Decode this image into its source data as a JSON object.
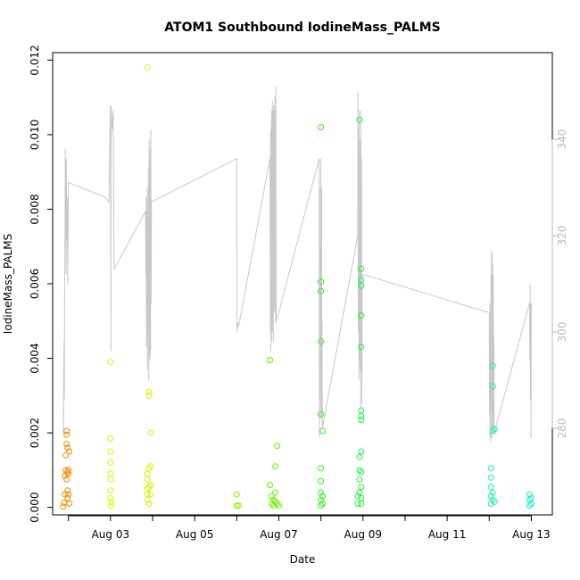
{
  "chart_data": {
    "type": "scatter",
    "title": "ATOM1 Southbound IodineMass_PALMS",
    "xlabel": "Date",
    "ylabel": "IodineMass_PALMS",
    "x_axis": {
      "unit": "date (day of August 2016)",
      "range": [
        "Aug 01 15:00",
        "Aug 13 12:00"
      ],
      "tick_labels": [
        "Aug 03",
        "Aug 05",
        "Aug 07",
        "Aug 09",
        "Aug 11",
        "Aug 13"
      ]
    },
    "ylim": [
      -0.0002,
      0.0122
    ],
    "y_tick_labels": [
      "0.000",
      "0.002",
      "0.004",
      "0.006",
      "0.008",
      "0.010",
      "0.012"
    ],
    "y2_axis": {
      "position": "right",
      "range": [
        262,
        358
      ],
      "tick_labels": [
        "280",
        "300",
        "320",
        "340"
      ],
      "color": "#b8b8b8"
    },
    "grid": false,
    "colors": {
      "secondary_line": "#c8c8c8",
      "right_axis": "#b8b8b8"
    },
    "points": [
      {
        "x": "Aug 01 21:00",
        "y": 2e-05,
        "c": "#f08a00"
      },
      {
        "x": "Aug 01 21:30",
        "y": 0.00012,
        "c": "#f08a00"
      },
      {
        "x": "Aug 01 22:00",
        "y": 0.00035,
        "c": "#f08a00"
      },
      {
        "x": "Aug 01 22:00",
        "y": 0.00085,
        "c": "#f08a00"
      },
      {
        "x": "Aug 01 22:30",
        "y": 0.001,
        "c": "#f08a00"
      },
      {
        "x": "Aug 01 22:30",
        "y": 0.0014,
        "c": "#f08a00"
      },
      {
        "x": "Aug 01 23:00",
        "y": 0.00195,
        "c": "#f08a00"
      },
      {
        "x": "Aug 01 23:00",
        "y": 0.00205,
        "c": "#f08a00"
      },
      {
        "x": "Aug 01 23:00",
        "y": 0.0017,
        "c": "#f08a00"
      },
      {
        "x": "Aug 01 23:00",
        "y": 0.00075,
        "c": "#f08a00"
      },
      {
        "x": "Aug 01 23:30",
        "y": 0.0016,
        "c": "#f08a00"
      },
      {
        "x": "Aug 01 23:30",
        "y": 0.00095,
        "c": "#f08a00"
      },
      {
        "x": "Aug 01 23:30",
        "y": 0.00045,
        "c": "#f08a00"
      },
      {
        "x": "Aug 01 23:30",
        "y": 0.00025,
        "c": "#f08a00"
      },
      {
        "x": "Aug 02 00:00",
        "y": 0.001,
        "c": "#f08a00"
      },
      {
        "x": "Aug 02 00:00",
        "y": 0.0009,
        "c": "#f08a00"
      },
      {
        "x": "Aug 02 00:00",
        "y": 0.00035,
        "c": "#f08a00"
      },
      {
        "x": "Aug 02 00:30",
        "y": 0.0001,
        "c": "#f08a00"
      },
      {
        "x": "Aug 02 00:30",
        "y": 0.0015,
        "c": "#f08a00"
      },
      {
        "x": "Aug 03 00:00",
        "y": 0.0039,
        "c": "#e6f000"
      },
      {
        "x": "Aug 03 00:00",
        "y": 0.00185,
        "c": "#e6f000"
      },
      {
        "x": "Aug 03 00:00",
        "y": 0.0015,
        "c": "#e6f000"
      },
      {
        "x": "Aug 03 00:00",
        "y": 0.0012,
        "c": "#e6f000"
      },
      {
        "x": "Aug 03 00:00",
        "y": 0.0009,
        "c": "#e6f000"
      },
      {
        "x": "Aug 03 00:00",
        "y": 0.00075,
        "c": "#e6f000"
      },
      {
        "x": "Aug 03 00:00",
        "y": 0.00045,
        "c": "#e6f000"
      },
      {
        "x": "Aug 03 00:00",
        "y": 0.00025,
        "c": "#e6f000"
      },
      {
        "x": "Aug 03 00:30",
        "y": 0.00015,
        "c": "#e6f000"
      },
      {
        "x": "Aug 03 00:30",
        "y": 5e-05,
        "c": "#e6f000"
      },
      {
        "x": "Aug 03 21:00",
        "y": 0.0118,
        "c": "#d8f000"
      },
      {
        "x": "Aug 03 21:00",
        "y": 0.0009,
        "c": "#d8f000"
      },
      {
        "x": "Aug 03 21:00",
        "y": 0.00075,
        "c": "#d8f000"
      },
      {
        "x": "Aug 03 21:00",
        "y": 0.0005,
        "c": "#d8f000"
      },
      {
        "x": "Aug 03 21:00",
        "y": 0.00035,
        "c": "#d8f000"
      },
      {
        "x": "Aug 03 21:00",
        "y": 0.0002,
        "c": "#d8f000"
      },
      {
        "x": "Aug 03 22:00",
        "y": 0.0031,
        "c": "#d8f000"
      },
      {
        "x": "Aug 03 22:00",
        "y": 0.003,
        "c": "#d8f000"
      },
      {
        "x": "Aug 03 22:00",
        "y": 0.00105,
        "c": "#d8f000"
      },
      {
        "x": "Aug 03 22:00",
        "y": 0.00055,
        "c": "#d8f000"
      },
      {
        "x": "Aug 03 22:00",
        "y": 0.0001,
        "c": "#d8f000"
      },
      {
        "x": "Aug 03 23:00",
        "y": 0.002,
        "c": "#d8f000"
      },
      {
        "x": "Aug 03 23:00",
        "y": 0.0011,
        "c": "#d8f000"
      },
      {
        "x": "Aug 03 23:00",
        "y": 0.0006,
        "c": "#d8f000"
      },
      {
        "x": "Aug 03 23:00",
        "y": 0.00035,
        "c": "#d8f000"
      },
      {
        "x": "Aug 06 00:00",
        "y": 0.00035,
        "c": "#8cf000"
      },
      {
        "x": "Aug 06 00:00",
        "y": 5e-05,
        "c": "#8cf000"
      },
      {
        "x": "Aug 06 01:00",
        "y": 5e-05,
        "c": "#8cf000"
      },
      {
        "x": "Aug 06 19:00",
        "y": 0.0006,
        "c": "#6af000"
      },
      {
        "x": "Aug 06 19:00",
        "y": 0.00395,
        "c": "#6af000"
      },
      {
        "x": "Aug 06 20:00",
        "y": 0.0003,
        "c": "#6af000"
      },
      {
        "x": "Aug 06 20:00",
        "y": 0.0001,
        "c": "#6af000"
      },
      {
        "x": "Aug 06 21:00",
        "y": 0.0002,
        "c": "#6af000"
      },
      {
        "x": "Aug 06 21:00",
        "y": 5e-05,
        "c": "#6af000"
      },
      {
        "x": "Aug 06 22:00",
        "y": 0.0011,
        "c": "#6af000"
      },
      {
        "x": "Aug 06 22:00",
        "y": 0.0004,
        "c": "#6af000"
      },
      {
        "x": "Aug 06 22:00",
        "y": 0.00015,
        "c": "#6af000"
      },
      {
        "x": "Aug 06 23:00",
        "y": 0.00165,
        "c": "#6af000"
      },
      {
        "x": "Aug 06 23:00",
        "y": 0.0001,
        "c": "#6af000"
      },
      {
        "x": "Aug 07 00:00",
        "y": 5e-05,
        "c": "#6af000"
      },
      {
        "x": "Aug 08 00:00",
        "y": 0.0102,
        "c": "#32f020"
      },
      {
        "x": "Aug 08 00:00",
        "y": 0.00605,
        "c": "#32f020"
      },
      {
        "x": "Aug 08 00:00",
        "y": 0.0058,
        "c": "#32f020"
      },
      {
        "x": "Aug 08 00:00",
        "y": 0.00445,
        "c": "#32f020"
      },
      {
        "x": "Aug 08 00:00",
        "y": 0.0025,
        "c": "#32f020"
      },
      {
        "x": "Aug 08 01:00",
        "y": 0.00205,
        "c": "#32f020"
      },
      {
        "x": "Aug 08 00:00",
        "y": 0.00105,
        "c": "#32f020"
      },
      {
        "x": "Aug 08 00:00",
        "y": 0.0007,
        "c": "#32f020"
      },
      {
        "x": "Aug 08 00:00",
        "y": 0.0004,
        "c": "#32f020"
      },
      {
        "x": "Aug 08 00:00",
        "y": 0.0002,
        "c": "#32f020"
      },
      {
        "x": "Aug 08 00:00",
        "y": 5e-05,
        "c": "#32f020"
      },
      {
        "x": "Aug 08 01:00",
        "y": 0.0003,
        "c": "#32f020"
      },
      {
        "x": "Aug 08 01:00",
        "y": 0.0001,
        "c": "#32f020"
      },
      {
        "x": "Aug 08 21:00",
        "y": 0.0003,
        "c": "#20f040"
      },
      {
        "x": "Aug 08 21:00",
        "y": 0.0001,
        "c": "#20f040"
      },
      {
        "x": "Aug 08 22:00",
        "y": 0.0104,
        "c": "#20f040"
      },
      {
        "x": "Aug 08 22:00",
        "y": 0.00135,
        "c": "#20f040"
      },
      {
        "x": "Aug 08 22:00",
        "y": 0.001,
        "c": "#20f040"
      },
      {
        "x": "Aug 08 22:00",
        "y": 0.00075,
        "c": "#20f040"
      },
      {
        "x": "Aug 08 22:00",
        "y": 0.0004,
        "c": "#20f040"
      },
      {
        "x": "Aug 08 23:00",
        "y": 0.0064,
        "c": "#20f040"
      },
      {
        "x": "Aug 08 23:00",
        "y": 0.0061,
        "c": "#20f040"
      },
      {
        "x": "Aug 08 23:00",
        "y": 0.00595,
        "c": "#20f040"
      },
      {
        "x": "Aug 08 23:00",
        "y": 0.00515,
        "c": "#20f040"
      },
      {
        "x": "Aug 08 23:00",
        "y": 0.0043,
        "c": "#20f040"
      },
      {
        "x": "Aug 08 23:00",
        "y": 0.0026,
        "c": "#20f040"
      },
      {
        "x": "Aug 08 23:00",
        "y": 0.00245,
        "c": "#20f040"
      },
      {
        "x": "Aug 08 23:00",
        "y": 0.00235,
        "c": "#20f040"
      },
      {
        "x": "Aug 08 23:00",
        "y": 0.0015,
        "c": "#20f040"
      },
      {
        "x": "Aug 08 23:00",
        "y": 0.00095,
        "c": "#20f040"
      },
      {
        "x": "Aug 08 23:00",
        "y": 0.00055,
        "c": "#20f040"
      },
      {
        "x": "Aug 08 23:00",
        "y": 0.00025,
        "c": "#20f040"
      },
      {
        "x": "Aug 08 23:00",
        "y": 0.0001,
        "c": "#20f040"
      },
      {
        "x": "Aug 12 01:00",
        "y": 0.00105,
        "c": "#1ef0b0"
      },
      {
        "x": "Aug 12 01:00",
        "y": 0.0008,
        "c": "#1ef0b0"
      },
      {
        "x": "Aug 12 01:00",
        "y": 0.00055,
        "c": "#1ef0b0"
      },
      {
        "x": "Aug 12 01:00",
        "y": 0.0003,
        "c": "#1ef0b0"
      },
      {
        "x": "Aug 12 01:00",
        "y": 0.0001,
        "c": "#1ef0b0"
      },
      {
        "x": "Aug 12 02:00",
        "y": 0.0038,
        "c": "#1ef0b0"
      },
      {
        "x": "Aug 12 02:00",
        "y": 0.00325,
        "c": "#1ef0b0"
      },
      {
        "x": "Aug 12 02:00",
        "y": 0.00205,
        "c": "#1ef0b0"
      },
      {
        "x": "Aug 12 02:00",
        "y": 0.0004,
        "c": "#1ef0b0"
      },
      {
        "x": "Aug 12 02:00",
        "y": 0.0002,
        "c": "#1ef0b0"
      },
      {
        "x": "Aug 12 03:00",
        "y": 0.0021,
        "c": "#1ef0b0"
      },
      {
        "x": "Aug 12 03:00",
        "y": 0.00015,
        "c": "#1ef0b0"
      },
      {
        "x": "Aug 12 23:00",
        "y": 0.00035,
        "c": "#10f0c8"
      },
      {
        "x": "Aug 12 23:00",
        "y": 0.0002,
        "c": "#10f0c8"
      },
      {
        "x": "Aug 12 23:00",
        "y": 5e-05,
        "c": "#10f0c8"
      },
      {
        "x": "Aug 13 00:00",
        "y": 0.00025,
        "c": "#10f0c8"
      },
      {
        "x": "Aug 13 00:00",
        "y": 0.0001,
        "c": "#10f0c8"
      }
    ],
    "secondary_series": {
      "axis": "right",
      "color": "#c8c8c8",
      "points": [
        [
          "Aug 01 21:00",
          284
        ],
        [
          "Aug 01 21:10",
          279
        ],
        [
          "Aug 01 21:20",
          291
        ],
        [
          "Aug 01 21:30",
          298
        ],
        [
          "Aug 01 21:40",
          286
        ],
        [
          "Aug 01 21:50",
          308
        ],
        [
          "Aug 01 22:00",
          318
        ],
        [
          "Aug 01 22:10",
          338
        ],
        [
          "Aug 01 22:20",
          322
        ],
        [
          "Aug 01 22:30",
          330
        ],
        [
          "Aug 01 22:40",
          312
        ],
        [
          "Aug 01 22:50",
          336
        ],
        [
          "Aug 01 23:00",
          319
        ],
        [
          "Aug 01 23:20",
          328
        ],
        [
          "Aug 01 23:40",
          310
        ],
        [
          "Aug 02 00:00",
          331
        ],
        [
          "Aug 02 21:00",
          328
        ],
        [
          "Aug 02 23:00",
          327
        ],
        [
          "Aug 03 00:00",
          347
        ],
        [
          "Aug 03 00:10",
          296
        ],
        [
          "Aug 03 00:20",
          347
        ],
        [
          "Aug 03 00:30",
          346
        ],
        [
          "Aug 03 01:00",
          342
        ],
        [
          "Aug 03 01:30",
          346
        ],
        [
          "Aug 03 02:00",
          313
        ],
        [
          "Aug 03 20:00",
          325
        ],
        [
          "Aug 03 20:10",
          312
        ],
        [
          "Aug 03 20:20",
          328
        ],
        [
          "Aug 03 20:30",
          297
        ],
        [
          "Aug 03 20:40",
          326
        ],
        [
          "Aug 03 20:50",
          308
        ],
        [
          "Aug 03 21:00",
          330
        ],
        [
          "Aug 03 21:10",
          292
        ],
        [
          "Aug 03 21:20",
          324
        ],
        [
          "Aug 03 21:30",
          300
        ],
        [
          "Aug 03 21:40",
          334
        ],
        [
          "Aug 03 21:50",
          290
        ],
        [
          "Aug 03 22:00",
          340
        ],
        [
          "Aug 03 22:10",
          295
        ],
        [
          "Aug 03 22:20",
          336
        ],
        [
          "Aug 03 22:30",
          294
        ],
        [
          "Aug 03 22:40",
          338
        ],
        [
          "Aug 03 22:50",
          296
        ],
        [
          "Aug 03 23:00",
          342
        ],
        [
          "Aug 03 23:10",
          306
        ],
        [
          "Aug 03 23:20",
          327
        ],
        [
          "Aug 06 00:00",
          336
        ],
        [
          "Aug 06 00:10",
          300
        ],
        [
          "Aug 06 00:30",
          302
        ],
        [
          "Aug 06 01:00",
          301
        ],
        [
          "Aug 06 19:00",
          336
        ],
        [
          "Aug 06 19:10",
          300
        ],
        [
          "Aug 06 19:20",
          342
        ],
        [
          "Aug 06 19:30",
          296
        ],
        [
          "Aug 06 19:40",
          344
        ],
        [
          "Aug 06 19:50",
          298
        ],
        [
          "Aug 06 20:00",
          346
        ],
        [
          "Aug 06 20:10",
          302
        ],
        [
          "Aug 06 20:20",
          348
        ],
        [
          "Aug 06 20:30",
          300
        ],
        [
          "Aug 06 20:40",
          346
        ],
        [
          "Aug 06 20:50",
          298
        ],
        [
          "Aug 06 21:00",
          347
        ],
        [
          "Aug 06 21:10",
          304
        ],
        [
          "Aug 06 21:20",
          345
        ],
        [
          "Aug 06 21:30",
          306
        ],
        [
          "Aug 06 21:40",
          349
        ],
        [
          "Aug 06 21:50",
          304
        ],
        [
          "Aug 06 22:00",
          346
        ],
        [
          "Aug 06 22:10",
          302
        ],
        [
          "Aug 06 22:20",
          351
        ],
        [
          "Aug 06 22:30",
          302
        ],
        [
          "Aug 07 23:00",
          336
        ],
        [
          "Aug 07 23:10",
          278
        ],
        [
          "Aug 07 23:20",
          330
        ],
        [
          "Aug 07 23:30",
          286
        ],
        [
          "Aug 07 23:40",
          318
        ],
        [
          "Aug 07 23:50",
          282
        ],
        [
          "Aug 08 00:00",
          336
        ],
        [
          "Aug 08 00:10",
          292
        ],
        [
          "Aug 08 00:20",
          330
        ],
        [
          "Aug 08 00:30",
          282
        ],
        [
          "Aug 08 00:40",
          302
        ],
        [
          "Aug 08 00:50",
          280
        ],
        [
          "Aug 08 21:00",
          320
        ],
        [
          "Aug 08 21:10",
          350
        ],
        [
          "Aug 08 21:20",
          300
        ],
        [
          "Aug 08 21:30",
          342
        ],
        [
          "Aug 08 21:40",
          290
        ],
        [
          "Aug 08 21:50",
          346
        ],
        [
          "Aug 08 22:00",
          294
        ],
        [
          "Aug 08 22:10",
          338
        ],
        [
          "Aug 08 22:20",
          292
        ],
        [
          "Aug 08 22:30",
          340
        ],
        [
          "Aug 08 22:40",
          284
        ],
        [
          "Aug 08 22:50",
          346
        ],
        [
          "Aug 08 23:00",
          292
        ],
        [
          "Aug 08 23:10",
          336
        ],
        [
          "Aug 08 23:20",
          285
        ],
        [
          "Aug 08 23:30",
          312
        ],
        [
          "Aug 12 00:00",
          304
        ],
        [
          "Aug 12 00:10",
          283
        ],
        [
          "Aug 12 00:20",
          306
        ],
        [
          "Aug 12 00:30",
          278
        ],
        [
          "Aug 12 00:40",
          300
        ],
        [
          "Aug 12 00:50",
          277
        ],
        [
          "Aug 12 01:00",
          312
        ],
        [
          "Aug 12 01:10",
          286
        ],
        [
          "Aug 12 01:20",
          317
        ],
        [
          "Aug 12 01:30",
          278
        ],
        [
          "Aug 12 01:40",
          316
        ],
        [
          "Aug 12 01:50",
          280
        ],
        [
          "Aug 12 02:00",
          314
        ],
        [
          "Aug 12 02:10",
          282
        ],
        [
          "Aug 12 02:20",
          312
        ],
        [
          "Aug 12 02:30",
          279
        ],
        [
          "Aug 12 02:40",
          299
        ],
        [
          "Aug 12 02:50",
          279
        ],
        [
          "Aug 12 23:00",
          306
        ],
        [
          "Aug 12 23:10",
          294
        ],
        [
          "Aug 12 23:20",
          310
        ],
        [
          "Aug 12 23:30",
          286
        ],
        [
          "Aug 12 23:40",
          306
        ],
        [
          "Aug 12 23:50",
          278
        ],
        [
          "Aug 13 00:00",
          306
        ],
        [
          "Aug 13 00:10",
          304
        ]
      ]
    }
  }
}
